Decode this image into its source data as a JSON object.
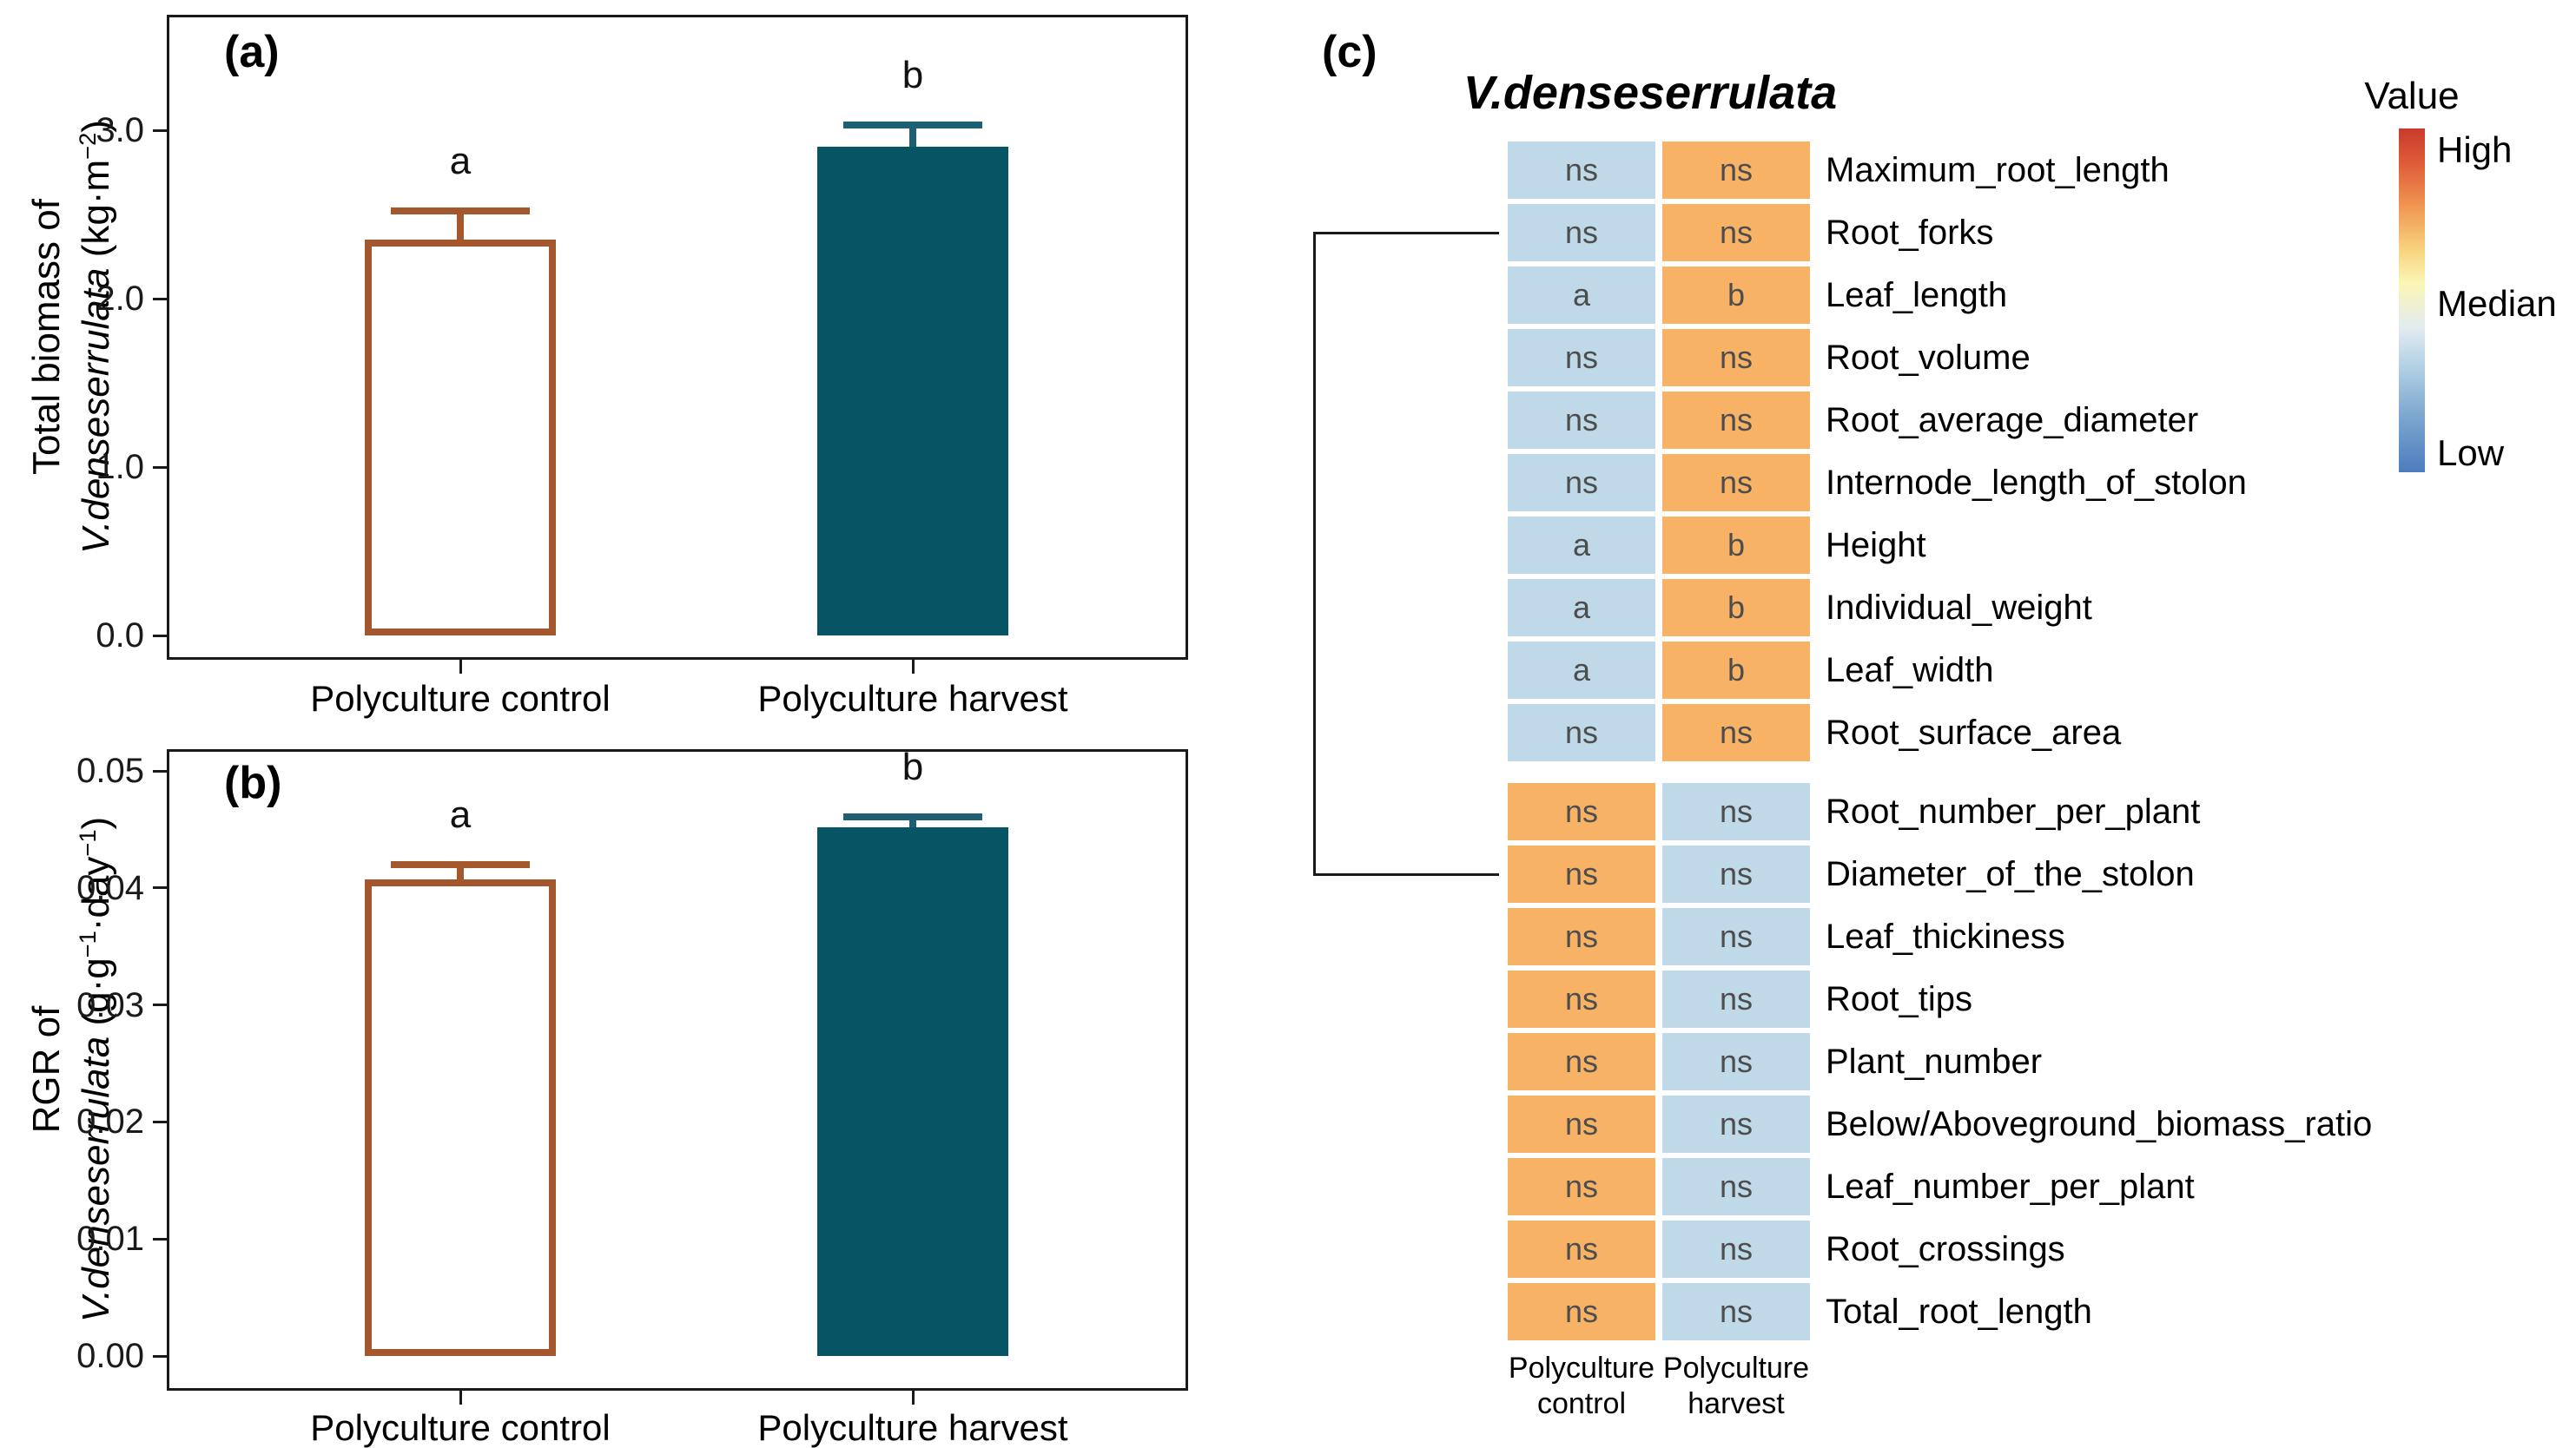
{
  "figure_tags": {
    "a": "(a)",
    "b": "(b)",
    "c": "(c)"
  },
  "legend": {
    "title": "Value",
    "labels": {
      "high": "High",
      "median": "Median",
      "low": "Low"
    },
    "gradient_stops": [
      [
        "#C93A2C",
        0
      ],
      [
        "#DE5B38",
        10
      ],
      [
        "#EF9350",
        22
      ],
      [
        "#F7D27E",
        35
      ],
      [
        "#FBF6B4",
        45
      ],
      [
        "#E2EBF1",
        58
      ],
      [
        "#AFCFE3",
        70
      ],
      [
        "#7CA6CF",
        84
      ],
      [
        "#4C7CBD",
        100
      ]
    ]
  },
  "chart_data": [
    {
      "id": "a",
      "type": "bar",
      "panel_tag": "(a)",
      "ylabel_lines": [
        [
          {
            "t": "Total biomass of"
          }
        ],
        [
          {
            "t": "V.denseserrulata",
            "italic": true
          },
          {
            "t": " (kg·m"
          },
          {
            "t": "−2",
            "sup": true
          },
          {
            "t": ")"
          }
        ]
      ],
      "categories": [
        "Polyculture control",
        "Polyculture harvest"
      ],
      "values": [
        2.35,
        2.9
      ],
      "error_upper": [
        2.52,
        3.03
      ],
      "sig_letters": [
        "a",
        "b"
      ],
      "ytick_labels": [
        "0.0",
        "1.0",
        "2.0",
        "3.0"
      ],
      "ytick_values": [
        0,
        1,
        2,
        3
      ],
      "ylim": [
        0,
        3.69
      ],
      "grid": false,
      "bar_fills": [
        "#FFFFFF",
        "#075465"
      ],
      "bar_strokes": [
        "#A4572C",
        "#075465"
      ],
      "error_colors": [
        "#A4572C",
        "#1E5F73"
      ]
    },
    {
      "id": "b",
      "type": "bar",
      "panel_tag": "(b)",
      "ylabel_lines": [
        [
          {
            "t": "RGR of"
          }
        ],
        [
          {
            "t": "V.denseserrulata",
            "italic": true
          },
          {
            "t": " (g·g"
          },
          {
            "t": "−1",
            "sup": true
          },
          {
            "t": "·day"
          },
          {
            "t": "−1",
            "sup": true
          },
          {
            "t": ")"
          }
        ]
      ],
      "categories": [
        "Polyculture control",
        "Polyculture harvest"
      ],
      "values": [
        0.0407,
        0.0452
      ],
      "error_upper": [
        0.042,
        0.0461
      ],
      "sig_letters": [
        "a",
        "b"
      ],
      "ytick_labels": [
        "0.00",
        "0.01",
        "0.02",
        "0.03",
        "0.04",
        "0.05"
      ],
      "ytick_values": [
        0,
        0.01,
        0.02,
        0.03,
        0.04,
        0.05
      ],
      "ylim": [
        0,
        0.052
      ],
      "grid": false,
      "bar_fills": [
        "#FFFFFF",
        "#075465"
      ],
      "bar_strokes": [
        "#A4572C",
        "#075465"
      ],
      "error_colors": [
        "#A4572C",
        "#1E5F73"
      ]
    },
    {
      "id": "c",
      "type": "heatmap",
      "title": "V.denseserrulata",
      "cell_colors": {
        "blue": "#BFD9E8",
        "orange": "#F8B266"
      },
      "column_labels": [
        [
          "Polyculture",
          "control"
        ],
        [
          "Polyculture",
          "harvest"
        ]
      ],
      "rows": [
        {
          "label": "Maximum_root_length",
          "cells": [
            "ns",
            "ns"
          ],
          "scheme": [
            "blue",
            "orange"
          ],
          "group": 1
        },
        {
          "label": "Root_forks",
          "cells": [
            "ns",
            "ns"
          ],
          "scheme": [
            "blue",
            "orange"
          ],
          "group": 1
        },
        {
          "label": "Leaf_length",
          "cells": [
            "a",
            "b"
          ],
          "scheme": [
            "blue",
            "orange"
          ],
          "group": 1
        },
        {
          "label": "Root_volume",
          "cells": [
            "ns",
            "ns"
          ],
          "scheme": [
            "blue",
            "orange"
          ],
          "group": 1
        },
        {
          "label": "Root_average_diameter",
          "cells": [
            "ns",
            "ns"
          ],
          "scheme": [
            "blue",
            "orange"
          ],
          "group": 1
        },
        {
          "label": "Internode_length_of_stolon",
          "cells": [
            "ns",
            "ns"
          ],
          "scheme": [
            "blue",
            "orange"
          ],
          "group": 1
        },
        {
          "label": "Height",
          "cells": [
            "a",
            "b"
          ],
          "scheme": [
            "blue",
            "orange"
          ],
          "group": 1
        },
        {
          "label": "Individual_weight",
          "cells": [
            "a",
            "b"
          ],
          "scheme": [
            "blue",
            "orange"
          ],
          "group": 1
        },
        {
          "label": "Leaf_width",
          "cells": [
            "a",
            "b"
          ],
          "scheme": [
            "blue",
            "orange"
          ],
          "group": 1
        },
        {
          "label": "Root_surface_area",
          "cells": [
            "ns",
            "ns"
          ],
          "scheme": [
            "blue",
            "orange"
          ],
          "group": 1
        },
        {
          "label": "Root_number_per_plant",
          "cells": [
            "ns",
            "ns"
          ],
          "scheme": [
            "orange",
            "blue"
          ],
          "group": 2
        },
        {
          "label": "Diameter_of_the_stolon",
          "cells": [
            "ns",
            "ns"
          ],
          "scheme": [
            "orange",
            "blue"
          ],
          "group": 2
        },
        {
          "label": "Leaf_thickiness",
          "cells": [
            "ns",
            "ns"
          ],
          "scheme": [
            "orange",
            "blue"
          ],
          "group": 2
        },
        {
          "label": "Root_tips",
          "cells": [
            "ns",
            "ns"
          ],
          "scheme": [
            "orange",
            "blue"
          ],
          "group": 2
        },
        {
          "label": "Plant_number",
          "cells": [
            "ns",
            "ns"
          ],
          "scheme": [
            "orange",
            "blue"
          ],
          "group": 2
        },
        {
          "label": "Below/Aboveground_biomass_ratio",
          "cells": [
            "ns",
            "ns"
          ],
          "scheme": [
            "orange",
            "blue"
          ],
          "group": 2
        },
        {
          "label": "Leaf_number_per_plant",
          "cells": [
            "ns",
            "ns"
          ],
          "scheme": [
            "orange",
            "blue"
          ],
          "group": 2
        },
        {
          "label": "Root_crossings",
          "cells": [
            "ns",
            "ns"
          ],
          "scheme": [
            "orange",
            "blue"
          ],
          "group": 2
        },
        {
          "label": "Total_root_length",
          "cells": [
            "ns",
            "ns"
          ],
          "scheme": [
            "orange",
            "blue"
          ],
          "group": 2
        }
      ],
      "cluster_bracket": {
        "from_row": "Root_forks",
        "to_row": "Diameter_of_the_stolon"
      }
    }
  ]
}
